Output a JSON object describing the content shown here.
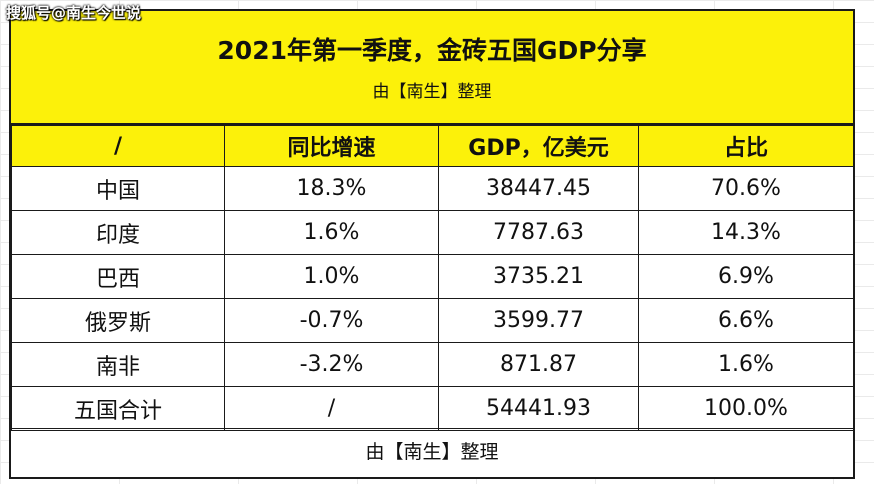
{
  "watermark": "搜狐号@南生今世说",
  "title": "2021年第一季度，金砖五国GDP分享",
  "subtitle": "由【南生】整理",
  "columns": [
    "/",
    "同比增速",
    "GDP，亿美元",
    "占比"
  ],
  "rows": [
    {
      "country": "中国",
      "growth": "18.3%",
      "gdp": "38447.45",
      "share": "70.6%"
    },
    {
      "country": "印度",
      "growth": "1.6%",
      "gdp": "7787.63",
      "share": "14.3%"
    },
    {
      "country": "巴西",
      "growth": "1.0%",
      "gdp": "3735.21",
      "share": "6.9%"
    },
    {
      "country": "俄罗斯",
      "growth": "-0.7%",
      "gdp": "3599.77",
      "share": "6.6%"
    },
    {
      "country": "南非",
      "growth": "-3.2%",
      "gdp": "871.87",
      "share": "1.6%"
    }
  ],
  "total": {
    "country": "五国合计",
    "growth": "/",
    "gdp": "54441.93",
    "share": "100.0%"
  },
  "footer": "由【南生】整理",
  "colors": {
    "header_bg": "#fcf10a",
    "border": "#1a1a1a"
  }
}
